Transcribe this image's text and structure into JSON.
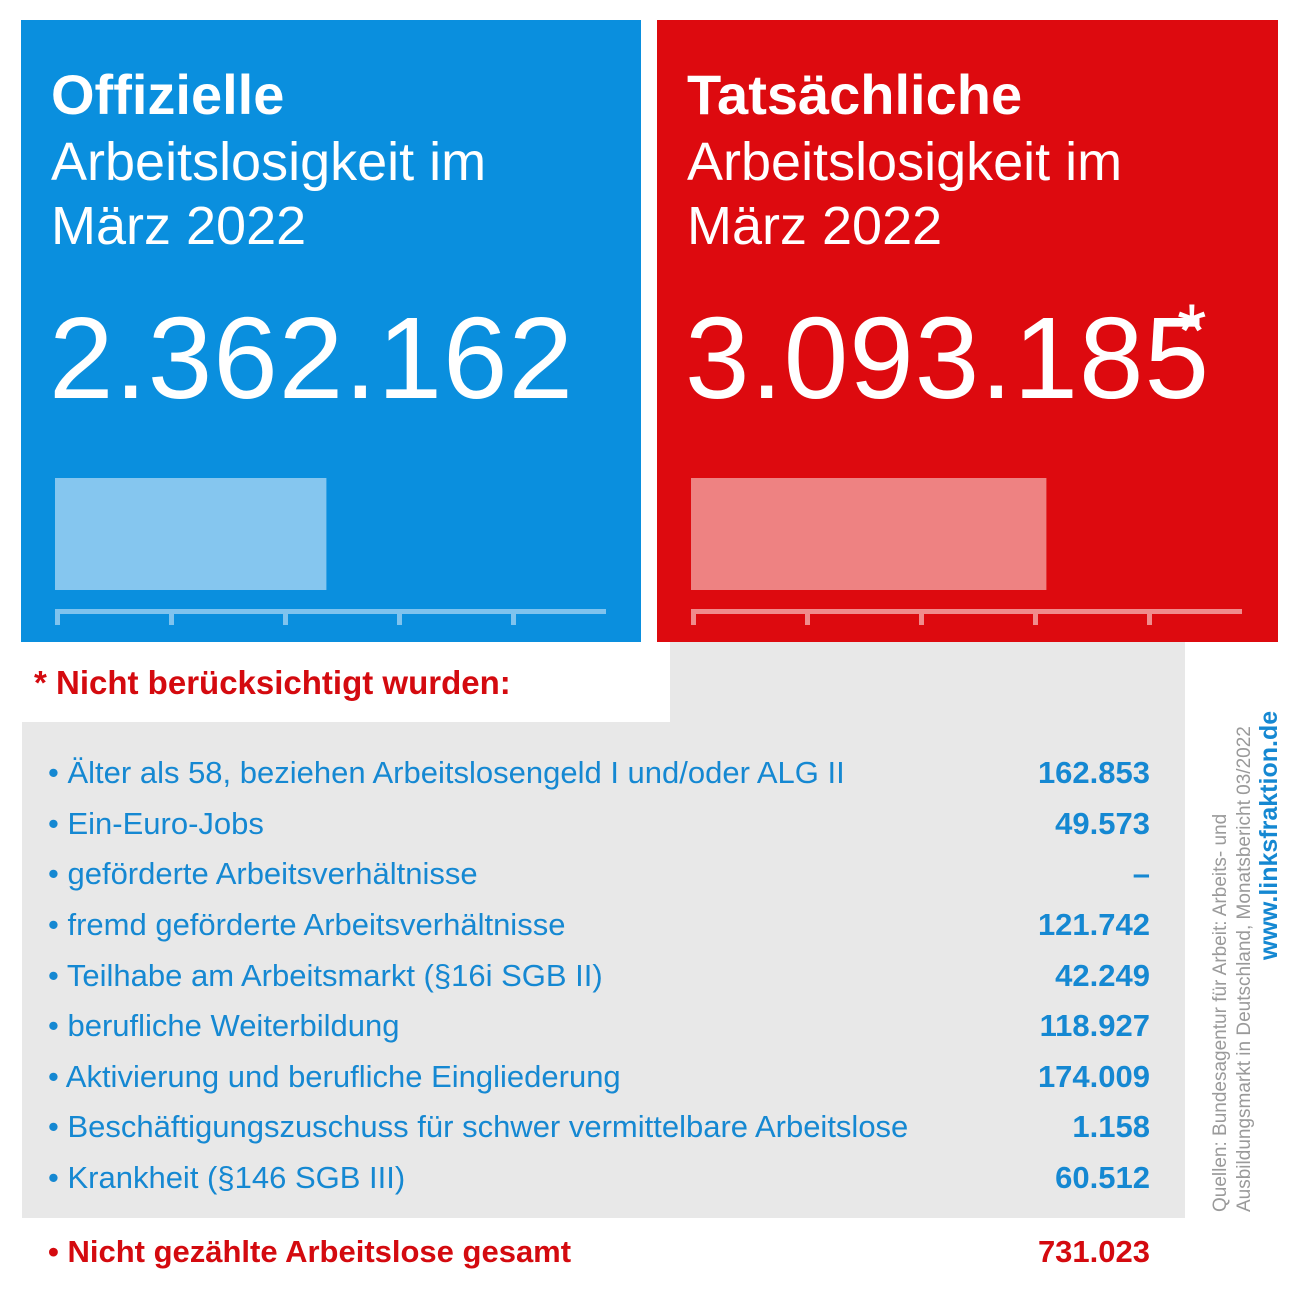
{
  "colors": {
    "blue": "#0a8fde",
    "red": "#dd0a0f",
    "light_blue_bar": "#85c6ef",
    "light_red_bar": "#ee8282",
    "gray_bg": "#e8e8e8"
  },
  "official": {
    "title_bold": "Offizielle",
    "title_line2": "Arbeitslosigkeit im",
    "title_line3": "März 2022",
    "number": "2.362.162"
  },
  "actual": {
    "title_bold": "Tatsächliche",
    "title_line2": "Arbeitslosigkeit im",
    "title_line3": "März 2022",
    "number": "3.093.185",
    "asterisk": "*"
  },
  "chart_data": {
    "type": "bar",
    "categories": [
      "Offizielle",
      "Tatsächliche"
    ],
    "values": [
      2362162,
      3093185
    ],
    "axis_ticks": 5
  },
  "note_title": "* Nicht berücksichtigt wurden:",
  "items": [
    {
      "label": "Älter als 58, beziehen Arbeitslosengeld I und/oder ALG II",
      "value": "162.853"
    },
    {
      "label": "Ein-Euro-Jobs",
      "value": "49.573"
    },
    {
      "label": "geförderte Arbeitsverhältnisse",
      "value": "–"
    },
    {
      "label": "fremd geförderte Arbeitsverhältnisse",
      "value": "121.742"
    },
    {
      "label": "Teilhabe am Arbeitsmarkt (§16i SGB II)",
      "value": "42.249"
    },
    {
      "label": "berufliche Weiterbildung",
      "value": "118.927"
    },
    {
      "label": "Aktivierung und berufliche Eingliederung",
      "value": "174.009"
    },
    {
      "label": "Beschäftigungszuschuss für schwer vermittelbare Arbeitslose",
      "value": "1.158"
    },
    {
      "label": "Krankheit (§146 SGB III)",
      "value": "60.512"
    }
  ],
  "total": {
    "label": "Nicht gezählte Arbeitslose gesamt",
    "value": "731.023"
  },
  "source_line1": "Quellen: Bundesagentur für Arbeit: Arbeits- und",
  "source_line2": "Ausbildungsmarkt in Deutschland, Monatsbericht 03/2022",
  "url": "www.linksfraktion.de"
}
